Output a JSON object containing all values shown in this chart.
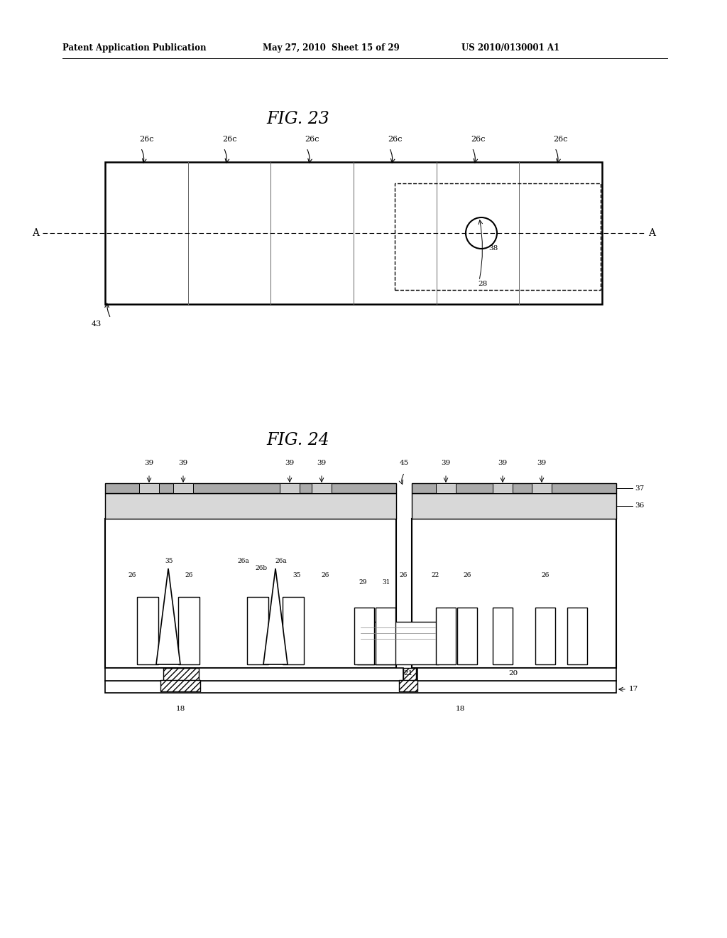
{
  "header_left": "Patent Application Publication",
  "header_mid": "May 27, 2010  Sheet 15 of 29",
  "header_right": "US 2010/0130001 A1",
  "fig23_title": "FIG. 23",
  "fig24_title": "FIG. 24",
  "bg_color": "#ffffff"
}
